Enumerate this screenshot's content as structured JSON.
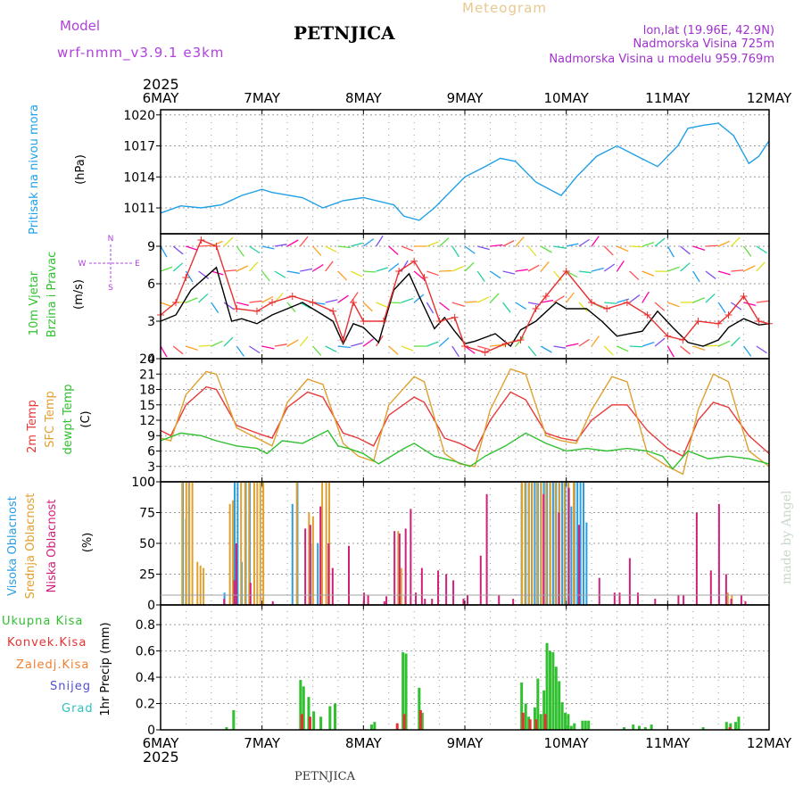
{
  "header": {
    "model_label": "Model",
    "model_name": "wrf-nmm_v3.9.1  e3km",
    "title": "PETNJICA",
    "meteogram": "Meteogram",
    "lonlat": "lon,lat (19.96E, 42.9N)",
    "elevation": "Nadmorska Visina 725m",
    "model_elevation": "Nadmorska Visina u modelu 959.769m",
    "footer_title": "PETNJICA",
    "watermark": "made by Angel",
    "year": "2025",
    "colors": {
      "model": "#b040e0",
      "meteogram": "#e8c890",
      "lonlat": "#a030d0",
      "title": "#000000"
    }
  },
  "chart_data": [
    {
      "type": "line",
      "id": "pressure",
      "ylabel_left": "Pritisak na nivou mora",
      "ylabel_unit": "(hPa)",
      "ylim": [
        1008.5,
        1020.5
      ],
      "yticks": [
        1011,
        1014,
        1017,
        1020
      ],
      "x_days": [
        "6MAY",
        "7MAY",
        "8MAY",
        "9MAY",
        "10MAY",
        "11MAY",
        "12MAY"
      ],
      "series": [
        {
          "name": "MSLP",
          "color": "#1fa0e8",
          "x": [
            0,
            0.2,
            0.4,
            0.6,
            0.8,
            1.0,
            1.1,
            1.4,
            1.6,
            1.8,
            2.0,
            2.3,
            2.4,
            2.55,
            2.7,
            3.0,
            3.2,
            3.35,
            3.5,
            3.7,
            3.95,
            4.1,
            4.3,
            4.5,
            4.7,
            4.9,
            5.1,
            5.2,
            5.35,
            5.5,
            5.65,
            5.8,
            5.9,
            6.0
          ],
          "values": [
            1010.5,
            1011.2,
            1011.0,
            1011.3,
            1012.2,
            1012.8,
            1012.5,
            1012.0,
            1011.0,
            1011.7,
            1012.0,
            1011.3,
            1010.2,
            1009.8,
            1011.0,
            1014.0,
            1015.0,
            1015.8,
            1015.5,
            1013.5,
            1012.2,
            1014.0,
            1016.0,
            1017.0,
            1016.0,
            1015.0,
            1017.0,
            1018.7,
            1019.0,
            1019.2,
            1018.0,
            1015.3,
            1016.0,
            1017.5
          ]
        }
      ]
    },
    {
      "type": "line",
      "id": "wind",
      "ylabel_left": "10m Vjetar",
      "ylabel_left2": "Brzina i Pravac",
      "ylabel_unit": "(m/s)",
      "compass": [
        "N",
        "W",
        "E",
        "S"
      ],
      "ylim": [
        0,
        10
      ],
      "yticks": [
        0,
        3,
        6,
        9
      ],
      "barb_levels": [
        1,
        4.5,
        7,
        9
      ],
      "series": [
        {
          "name": "wind speed",
          "color": "#000000",
          "x": [
            0,
            0.15,
            0.3,
            0.55,
            0.7,
            0.8,
            0.95,
            1.1,
            1.4,
            1.6,
            1.7,
            1.8,
            1.9,
            2.0,
            2.15,
            2.3,
            2.45,
            2.55,
            2.7,
            2.8,
            2.9,
            3.0,
            3.1,
            3.3,
            3.45,
            3.55,
            3.7,
            3.9,
            4.0,
            4.2,
            4.35,
            4.5,
            4.75,
            4.9,
            5.05,
            5.2,
            5.35,
            5.5,
            5.6,
            5.75,
            5.9,
            6.0
          ],
          "values": [
            3.0,
            3.5,
            5.5,
            7.3,
            3.0,
            3.2,
            2.8,
            3.5,
            4.5,
            3.5,
            3.0,
            1.2,
            2.8,
            2.5,
            1.3,
            5.5,
            6.8,
            5.0,
            2.4,
            3.3,
            2.2,
            1.2,
            1.4,
            2.0,
            1.0,
            2.3,
            3.0,
            4.5,
            4.0,
            4.0,
            3.0,
            1.8,
            2.2,
            3.8,
            2.5,
            1.3,
            1.0,
            1.5,
            2.5,
            3.2,
            2.7,
            2.8
          ]
        },
        {
          "name": "gust",
          "color": "#e83030",
          "x": [
            0,
            0.15,
            0.25,
            0.4,
            0.55,
            0.75,
            0.95,
            1.1,
            1.3,
            1.5,
            1.7,
            1.8,
            1.9,
            2.0,
            2.2,
            2.35,
            2.5,
            2.6,
            2.75,
            2.9,
            3.0,
            3.2,
            3.4,
            3.55,
            3.7,
            3.8,
            4.0,
            4.25,
            4.4,
            4.6,
            4.8,
            5.0,
            5.15,
            5.3,
            5.5,
            5.6,
            5.75,
            5.9,
            6.0
          ],
          "values": [
            3.5,
            4.5,
            6.5,
            9.5,
            9.0,
            4.0,
            3.8,
            4.5,
            5.0,
            4.5,
            3.8,
            1.5,
            4.5,
            3.0,
            3.0,
            7.0,
            7.8,
            6.5,
            3.0,
            3.3,
            1.0,
            0.5,
            1.2,
            1.5,
            4.0,
            5.0,
            7.0,
            4.5,
            4.0,
            4.5,
            3.5,
            1.8,
            1.5,
            3.0,
            2.8,
            3.5,
            5.0,
            3.0,
            2.8
          ]
        }
      ]
    },
    {
      "type": "line",
      "id": "temperature",
      "ylabel_left": "2m Temp",
      "ylabel_left2": "SFC Temp",
      "ylabel_left3": "dewpt Temp",
      "ylabel_unit": "(C)",
      "ylim": [
        0,
        24
      ],
      "yticks": [
        0,
        3,
        6,
        9,
        12,
        15,
        18,
        21,
        24
      ],
      "series": [
        {
          "name": "2m Temp",
          "color": "#e83a3a",
          "x": [
            0,
            0.1,
            0.25,
            0.45,
            0.55,
            0.75,
            0.95,
            1.1,
            1.25,
            1.45,
            1.6,
            1.8,
            1.95,
            2.1,
            2.25,
            2.5,
            2.6,
            2.8,
            2.95,
            3.1,
            3.25,
            3.45,
            3.6,
            3.8,
            3.95,
            4.1,
            4.25,
            4.45,
            4.6,
            4.8,
            5.0,
            5.15,
            5.3,
            5.45,
            5.6,
            5.8,
            6.0
          ],
          "values": [
            10.0,
            9.0,
            15.0,
            18.5,
            18.0,
            11.0,
            9.5,
            8.5,
            14.5,
            17.5,
            16.5,
            9.5,
            8.5,
            7.0,
            13.0,
            16.5,
            15.5,
            8.5,
            7.5,
            6.0,
            12.0,
            17.5,
            16.0,
            9.5,
            8.5,
            8.0,
            12.0,
            15.0,
            15.0,
            10.0,
            6.5,
            5.0,
            12.0,
            15.5,
            14.5,
            9.0,
            5.5
          ]
        },
        {
          "name": "SFC Temp",
          "color": "#e0a030",
          "x": [
            0,
            0.1,
            0.25,
            0.45,
            0.55,
            0.75,
            0.95,
            1.1,
            1.25,
            1.45,
            1.6,
            1.8,
            1.95,
            2.1,
            2.25,
            2.5,
            2.6,
            2.8,
            2.95,
            3.1,
            3.25,
            3.45,
            3.6,
            3.8,
            3.95,
            4.1,
            4.25,
            4.45,
            4.6,
            4.8,
            5.0,
            5.15,
            5.3,
            5.45,
            5.6,
            5.8,
            6.0
          ],
          "values": [
            8.5,
            8.0,
            17.0,
            21.5,
            21.0,
            10.5,
            8.5,
            7.0,
            15.5,
            20.0,
            19.0,
            7.5,
            5.0,
            4.0,
            15.0,
            20.5,
            19.5,
            5.5,
            3.5,
            3.0,
            14.0,
            22.0,
            21.0,
            9.0,
            8.0,
            7.5,
            14.0,
            20.5,
            19.5,
            5.5,
            3.0,
            1.5,
            14.0,
            21.0,
            19.5,
            6.0,
            3.0
          ]
        },
        {
          "name": "dewpt Temp",
          "color": "#30c030",
          "x": [
            0,
            0.2,
            0.4,
            0.55,
            0.75,
            0.95,
            1.05,
            1.2,
            1.4,
            1.65,
            1.75,
            1.85,
            2.0,
            2.15,
            2.4,
            2.5,
            2.7,
            2.9,
            3.05,
            3.2,
            3.4,
            3.6,
            3.8,
            4.0,
            4.2,
            4.4,
            4.6,
            4.8,
            4.95,
            5.05,
            5.2,
            5.4,
            5.6,
            5.8,
            6.0
          ],
          "values": [
            8.0,
            9.5,
            9.0,
            8.0,
            7.0,
            6.5,
            5.5,
            8.0,
            7.5,
            10.0,
            7.0,
            6.5,
            5.5,
            3.5,
            6.5,
            7.5,
            5.0,
            4.0,
            3.0,
            5.0,
            7.0,
            9.5,
            7.5,
            6.0,
            6.5,
            6.0,
            6.5,
            6.0,
            5.0,
            2.5,
            6.0,
            4.5,
            5.0,
            4.5,
            3.5
          ]
        }
      ]
    },
    {
      "type": "bar",
      "id": "clouds",
      "ylabel_left": "Visoka Oblacnost",
      "ylabel_left2": "Srednja Oblacnost",
      "ylabel_left3": "Niska Oblacnost",
      "ylabel_unit": "(%)",
      "ylim": [
        0,
        100
      ],
      "yticks": [
        0,
        25,
        50,
        75,
        100
      ],
      "series": [
        {
          "name": "Visoka Oblacnost",
          "color": "#2a9ee0",
          "x": [
            0.22,
            0.25,
            0.28,
            0.63,
            0.73,
            0.76,
            0.8,
            0.84,
            0.88,
            1.3,
            1.35,
            1.5,
            1.55,
            3.56,
            3.6,
            3.63,
            3.66,
            3.69,
            3.72,
            3.75,
            3.78,
            3.81,
            3.84,
            3.87,
            3.9,
            3.93,
            3.96,
            3.99,
            4.02,
            4.05,
            4.08,
            4.11,
            4.14,
            4.17,
            4.2
          ],
          "values": [
            100,
            70,
            100,
            10,
            100,
            100,
            35,
            100,
            100,
            82,
            100,
            50,
            50,
            100,
            100,
            100,
            100,
            100,
            100,
            100,
            100,
            100,
            100,
            100,
            100,
            100,
            100,
            100,
            100,
            80,
            100,
            100,
            100,
            100,
            67
          ]
        },
        {
          "name": "Srednja Oblacnost",
          "color": "#e0a030",
          "x": [
            0.2,
            0.24,
            0.27,
            0.3,
            0.35,
            0.38,
            0.41,
            0.67,
            0.7,
            0.78,
            0.82,
            0.86,
            0.91,
            0.94,
            0.97,
            1.0,
            1.33,
            1.45,
            1.49,
            1.58,
            1.62,
            1.65,
            2.33,
            2.36,
            2.4,
            3.55,
            3.58,
            3.62,
            3.65,
            3.7,
            3.74,
            3.79,
            3.83,
            3.88,
            3.92,
            3.97,
            4.01,
            4.06,
            5.58,
            5.62
          ],
          "values": [
            100,
            100,
            100,
            100,
            35,
            32,
            30,
            82,
            85,
            100,
            100,
            100,
            100,
            100,
            100,
            100,
            100,
            75,
            72,
            100,
            100,
            100,
            60,
            30,
            8,
            100,
            100,
            100,
            100,
            100,
            100,
            100,
            100,
            100,
            100,
            100,
            100,
            100,
            10,
            8
          ]
        },
        {
          "name": "Niska Oblacnost",
          "color": "#d0207a",
          "x": [
            0.6,
            0.7,
            0.72,
            0.86,
            1.08,
            1.4,
            1.45,
            1.55,
            1.63,
            1.67,
            1.83,
            1.98,
            2.02,
            2.18,
            2.2,
            2.28,
            2.33,
            2.39,
            2.44,
            2.49,
            2.55,
            2.58,
            2.65,
            2.71,
            2.79,
            2.86,
            2.96,
            3.0,
            3.13,
            3.19,
            3.31,
            3.45,
            3.75,
            3.9,
            4.0,
            4.1,
            4.3,
            4.45,
            4.5,
            4.6,
            4.68,
            4.85,
            5.08,
            5.13,
            5.26,
            5.4,
            5.48,
            5.55,
            5.6,
            5.7,
            5.74
          ],
          "values": [
            5,
            20,
            50,
            18,
            3,
            62,
            65,
            80,
            50,
            30,
            48,
            10,
            8,
            3,
            7,
            60,
            58,
            62,
            78,
            10,
            30,
            5,
            5,
            28,
            25,
            20,
            5,
            8,
            40,
            90,
            8,
            5,
            90,
            75,
            95,
            65,
            22,
            10,
            10,
            38,
            10,
            5,
            8,
            8,
            75,
            28,
            82,
            25,
            5,
            8,
            3
          ]
        }
      ]
    },
    {
      "type": "bar",
      "id": "precip",
      "ylabel_left": "Ukupna Kisa",
      "ylabel_left2": "Konvek.Kisa",
      "ylabel_left3": "Zaledj.Kisa",
      "ylabel_left4": "Snijeg",
      "ylabel_left5": "Grad",
      "ylabel_unit": "1hr Precip (mm)",
      "ylim": [
        0,
        0.95
      ],
      "yticks": [
        0,
        0.2,
        0.4,
        0.6,
        0.8
      ],
      "x_days_bottom": [
        "6MAY",
        "7MAY",
        "8MAY",
        "9MAY",
        "10MAY",
        "11MAY",
        "12MAY"
      ],
      "series": [
        {
          "name": "Ukupna Kisa",
          "color": "#30c030",
          "x": [
            0.65,
            0.72,
            1.38,
            1.41,
            1.46,
            1.51,
            1.58,
            1.67,
            1.72,
            2.08,
            2.11,
            2.39,
            2.42,
            2.55,
            2.58,
            3.56,
            3.6,
            3.63,
            3.69,
            3.72,
            3.75,
            3.78,
            3.81,
            3.84,
            3.87,
            3.9,
            3.93,
            3.96,
            3.99,
            4.02,
            4.05,
            4.08,
            4.16,
            4.19,
            4.22,
            4.57,
            4.66,
            4.72,
            4.78,
            4.84,
            5.35,
            5.58,
            5.62,
            5.67,
            5.7
          ],
          "values": [
            0.02,
            0.15,
            0.38,
            0.33,
            0.25,
            0.14,
            0.1,
            0.18,
            0.2,
            0.04,
            0.06,
            0.59,
            0.58,
            0.32,
            0.13,
            0.36,
            0.2,
            0.1,
            0.17,
            0.39,
            0.12,
            0.3,
            0.66,
            0.6,
            0.59,
            0.48,
            0.37,
            0.21,
            0.13,
            0.12,
            0.03,
            0.05,
            0.07,
            0.07,
            0.07,
            0.02,
            0.04,
            0.03,
            0.02,
            0.04,
            0.02,
            0.06,
            0.05,
            0.06,
            0.1
          ]
        },
        {
          "name": "Konvek.Kisa",
          "color": "#e83030",
          "x": [
            1.38,
            1.46,
            2.32,
            2.39,
            2.55,
            3.56,
            3.63,
            3.69,
            3.78,
            5.6
          ],
          "values": [
            0.12,
            0.1,
            0.05,
            0.12,
            0.15,
            0.13,
            0.08,
            0.08,
            0.12,
            0.02
          ]
        },
        {
          "name": "Zaledj.Kisa",
          "color": "#f08030",
          "x": [],
          "values": []
        },
        {
          "name": "Snijeg",
          "color": "#5050d0",
          "x": [],
          "values": []
        },
        {
          "name": "Grad",
          "color": "#30c0c0",
          "x": [],
          "values": []
        }
      ]
    }
  ]
}
